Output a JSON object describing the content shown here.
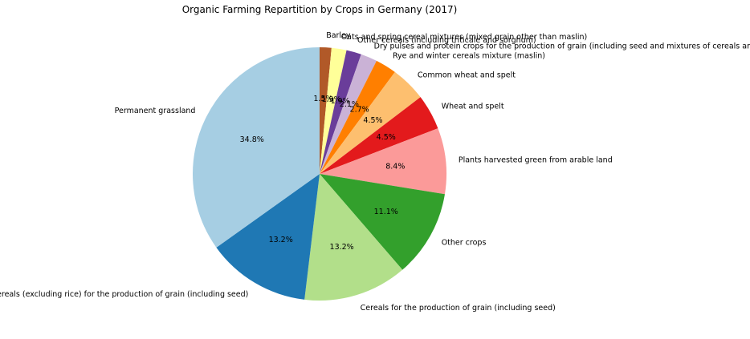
{
  "chart_data": {
    "type": "pie",
    "title": "Organic Farming Repartition by Crops in Germany (2017)",
    "start_angle_deg": 90,
    "direction": "clockwise",
    "slices": [
      {
        "label": "Barley",
        "value": 1.5,
        "pct_label": "1.5%",
        "color": "#b15928"
      },
      {
        "label": "Oats and spring cereal mixtures (mixed grain other than maslin)",
        "value": 1.9,
        "pct_label": "1.9%",
        "color": "#ffff99"
      },
      {
        "label": "Other cereals (including triticale and sorghum)",
        "value": 1.9,
        "pct_label": "1.9%",
        "color": "#6a3d9a"
      },
      {
        "label": "Dry pulses and protein crops for the production of grain (including seed and mixtures of cereals and...)",
        "value": 2.1,
        "pct_label": "2.1%",
        "color": "#cab2d6"
      },
      {
        "label": "Rye and winter cereals mixture (maslin)",
        "value": 2.7,
        "pct_label": "2.7%",
        "color": "#ff7f00"
      },
      {
        "label": "Common wheat and spelt",
        "value": 4.5,
        "pct_label": "4.5%",
        "color": "#fdbf6f"
      },
      {
        "label": "Wheat and spelt",
        "value": 4.5,
        "pct_label": "4.5%",
        "color": "#e31a1c"
      },
      {
        "label": "Plants harvested green from arable land",
        "value": 8.4,
        "pct_label": "8.4%",
        "color": "#fb9a99"
      },
      {
        "label": "Other crops",
        "value": 11.1,
        "pct_label": "11.1%",
        "color": "#33a02c"
      },
      {
        "label": "Cereals for the production of grain (including seed)",
        "value": 13.2,
        "pct_label": "13.2%",
        "color": "#b2df8a"
      },
      {
        "label": "Cereals (excluding rice) for the production of grain (including seed)",
        "value": 13.2,
        "pct_label": "13.2%",
        "color": "#1f78b4"
      },
      {
        "label": "Permanent grassland",
        "value": 34.8,
        "pct_label": "34.8%",
        "color": "#a6cee3"
      }
    ]
  }
}
